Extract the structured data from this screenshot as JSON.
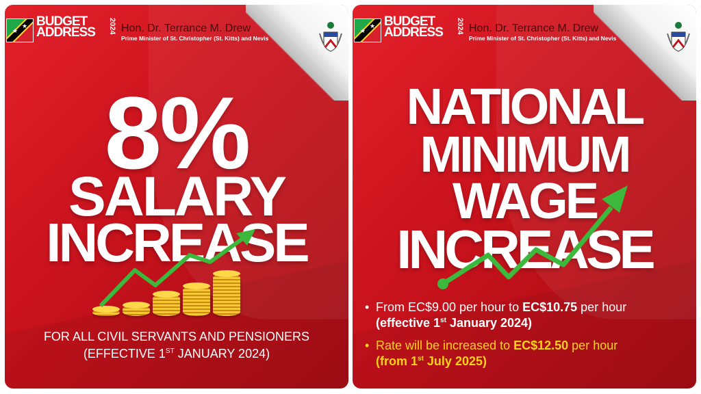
{
  "header": {
    "logo_line1": "BUDGET",
    "logo_line2": "ADDRESS",
    "logo_year": "2024",
    "speaker_name": "Hon. Dr. Terrance M. Drew",
    "speaker_title": "Prime Minister of St. Christopher (St. Kitts) and Nevis"
  },
  "left_panel": {
    "headline_percent": "8%",
    "headline_line2": "SALARY",
    "headline_line3": "INCREASE",
    "footer_line1": "FOR ALL CIVIL SERVANTS AND PENSIONERS",
    "footer_line2_pre": "(EFFECTIVE 1",
    "footer_line2_sup": "ST",
    "footer_line2_post": " JANUARY 2024)"
  },
  "right_panel": {
    "headline_lines": [
      "NATIONAL",
      "MINIMUM",
      "WAGE",
      "INCREASE"
    ],
    "bullet1": {
      "pre": "From EC$9.00 per hour to ",
      "bold": "EC$10.75",
      "post": " per hour",
      "line2_pre": "(effective 1",
      "line2_sup": "st",
      "line2_post": " January 2024)"
    },
    "bullet2": {
      "pre": "Rate will be increased to ",
      "bold": "EC$12.50",
      "post": " per hour",
      "line2_pre": "(from 1",
      "line2_sup": "st",
      "line2_post": " July 2025)"
    }
  },
  "colors": {
    "red": "#d3161f",
    "white": "#ffffff",
    "yellow": "#ffd21a",
    "arrow_green": "#3cb83c"
  },
  "icons": [
    "flag-icon",
    "coat-of-arms-icon",
    "growth-arrow-icon",
    "coin-stack-icon"
  ]
}
